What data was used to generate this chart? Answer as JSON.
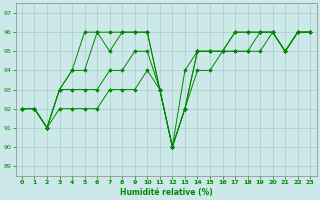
{
  "xlabel": "Humidité relative (%)",
  "xlim": [
    -0.5,
    23.5
  ],
  "ylim": [
    88.5,
    97.5
  ],
  "yticks": [
    89,
    90,
    91,
    92,
    93,
    94,
    95,
    96,
    97
  ],
  "xticks": [
    0,
    1,
    2,
    3,
    4,
    5,
    6,
    7,
    8,
    9,
    10,
    11,
    12,
    13,
    14,
    15,
    16,
    17,
    18,
    19,
    20,
    21,
    22,
    23
  ],
  "bg_color": "#cce8e8",
  "grid_color": "#aacccc",
  "line_color": "#008800",
  "lines": [
    [
      92,
      92,
      91,
      93,
      94,
      96,
      96,
      96,
      96,
      96,
      96,
      93,
      90,
      92,
      95,
      95,
      95,
      96,
      96,
      96,
      96,
      95,
      96,
      96
    ],
    [
      92,
      92,
      91,
      93,
      94,
      94,
      96,
      95,
      96,
      96,
      96,
      93,
      90,
      94,
      95,
      95,
      95,
      96,
      96,
      96,
      96,
      95,
      96,
      96
    ],
    [
      92,
      92,
      91,
      93,
      93,
      93,
      93,
      94,
      94,
      95,
      95,
      93,
      90,
      92,
      95,
      95,
      95,
      95,
      95,
      96,
      96,
      95,
      96,
      96
    ],
    [
      92,
      92,
      91,
      92,
      92,
      92,
      92,
      93,
      93,
      93,
      94,
      93,
      90,
      92,
      94,
      94,
      95,
      95,
      95,
      95,
      96,
      95,
      96,
      96
    ]
  ]
}
